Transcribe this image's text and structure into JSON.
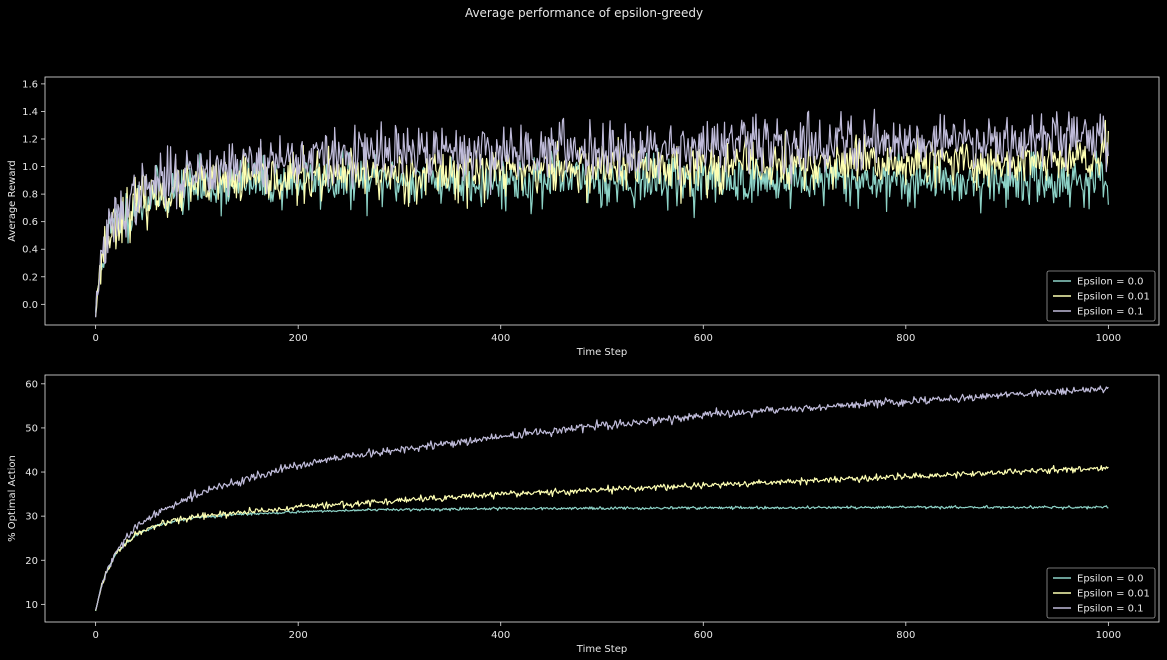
{
  "figure": {
    "title": "Average performance of epsilon-greedy",
    "background": "#000000",
    "foreground": "#e6e6e6"
  },
  "series_colors": [
    "#8dd3c7",
    "#feffb3",
    "#bfbbd9"
  ],
  "chart_data": [
    {
      "type": "line",
      "title": "",
      "xlabel": "Time Step",
      "ylabel": "Average Reward",
      "xlim": [
        -50,
        1050
      ],
      "ylim": [
        -0.15,
        1.65
      ],
      "xticks": [
        0,
        200,
        400,
        600,
        800,
        1000
      ],
      "xtick_labels": [
        "0",
        "200",
        "400",
        "600",
        "800",
        "1000"
      ],
      "yticks": [
        0.0,
        0.2,
        0.4,
        0.6,
        0.8,
        1.0,
        1.2,
        1.4,
        1.6
      ],
      "ytick_labels": [
        "0.0",
        "0.2",
        "0.4",
        "0.6",
        "0.8",
        "1.0",
        "1.2",
        "1.4",
        "1.6"
      ],
      "grid": false,
      "legend": "lower-right",
      "x_anchor": [
        0,
        5,
        10,
        20,
        40,
        60,
        100,
        150,
        200,
        300,
        400,
        500,
        600,
        700,
        800,
        900,
        1000
      ],
      "series": [
        {
          "name": "Epsilon = 0.0",
          "color": "#8dd3c7",
          "noise": 0.09,
          "seed": 11,
          "anchor": [
            -0.05,
            0.3,
            0.45,
            0.6,
            0.72,
            0.8,
            0.85,
            0.88,
            0.89,
            0.9,
            0.9,
            0.9,
            0.9,
            0.9,
            0.9,
            0.9,
            0.9
          ]
        },
        {
          "name": "Epsilon = 0.01",
          "color": "#feffb3",
          "noise": 0.09,
          "seed": 23,
          "anchor": [
            -0.05,
            0.3,
            0.45,
            0.6,
            0.73,
            0.8,
            0.86,
            0.9,
            0.92,
            0.95,
            0.97,
            0.99,
            1.0,
            1.01,
            1.02,
            1.03,
            1.05
          ]
        },
        {
          "name": "Epsilon = 0.1",
          "color": "#bfbbd9",
          "noise": 0.1,
          "seed": 37,
          "anchor": [
            -0.05,
            0.3,
            0.45,
            0.62,
            0.78,
            0.88,
            0.98,
            1.03,
            1.06,
            1.09,
            1.11,
            1.13,
            1.15,
            1.17,
            1.19,
            1.2,
            1.22
          ]
        }
      ]
    },
    {
      "type": "line",
      "title": "",
      "xlabel": "Time Step",
      "ylabel": "% Optimal Action",
      "xlim": [
        -50,
        1050
      ],
      "ylim": [
        6,
        62
      ],
      "xticks": [
        0,
        200,
        400,
        600,
        800,
        1000
      ],
      "xtick_labels": [
        "0",
        "200",
        "400",
        "600",
        "800",
        "1000"
      ],
      "yticks": [
        10,
        20,
        30,
        40,
        50,
        60
      ],
      "ytick_labels": [
        "10",
        "20",
        "30",
        "40",
        "50",
        "60"
      ],
      "grid": false,
      "legend": "lower-right",
      "x_anchor": [
        0,
        5,
        10,
        20,
        30,
        40,
        60,
        80,
        100,
        150,
        200,
        250,
        300,
        400,
        500,
        600,
        700,
        800,
        900,
        1000
      ],
      "series": [
        {
          "name": "Epsilon = 0.0",
          "color": "#8dd3c7",
          "noise": 0.15,
          "seed": 5,
          "anchor": [
            8.5,
            13.5,
            17,
            21.5,
            24,
            25.8,
            27.8,
            29,
            29.8,
            30.5,
            31,
            31.3,
            31.5,
            31.7,
            31.8,
            31.9,
            31.9,
            32,
            32,
            32
          ]
        },
        {
          "name": "Epsilon = 0.01",
          "color": "#feffb3",
          "noise": 0.35,
          "seed": 17,
          "anchor": [
            8.5,
            13.5,
            17,
            21.5,
            24,
            25.8,
            27.8,
            29,
            29.8,
            31,
            32,
            32.8,
            33.5,
            35,
            36,
            37,
            38,
            39,
            40,
            41
          ]
        },
        {
          "name": "Epsilon = 0.1",
          "color": "#bfbbd9",
          "noise": 0.45,
          "seed": 29,
          "anchor": [
            8.5,
            13.5,
            17,
            21.5,
            25,
            27.5,
            30.5,
            33,
            35,
            38.5,
            41.5,
            43.5,
            45,
            48,
            50.5,
            52.8,
            54.5,
            56,
            57.5,
            59
          ]
        }
      ]
    }
  ]
}
